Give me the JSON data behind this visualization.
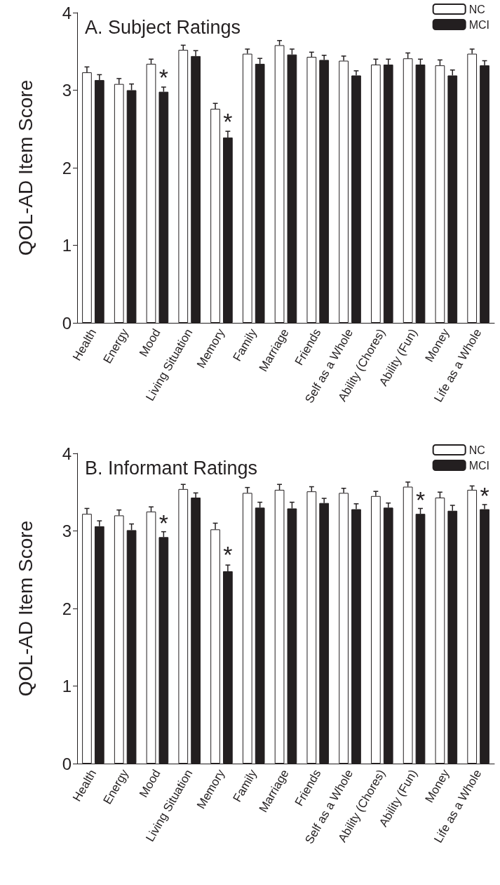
{
  "chart_data": [
    {
      "type": "bar",
      "title": "A. Subject Ratings",
      "ylabel": "QOL-AD Item Score",
      "categories": [
        "Health",
        "Energy",
        "Mood",
        "Living Situation",
        "Memory",
        "Family",
        "Marriage",
        "Friends",
        "Self as a Whole",
        "Ability (Chores)",
        "Ability (Fun)",
        "Money",
        "Life as a Whole"
      ],
      "series": [
        {
          "name": "NC",
          "color": "#ffffff",
          "values": [
            3.23,
            3.08,
            3.34,
            3.52,
            2.76,
            3.47,
            3.58,
            3.43,
            3.38,
            3.33,
            3.41,
            3.32,
            3.47
          ],
          "errors": [
            [
              3.23,
              3.3
            ],
            [
              3.08,
              3.15
            ],
            [
              3.34,
              3.4
            ],
            [
              3.52,
              3.58
            ],
            [
              2.76,
              2.83
            ],
            [
              3.47,
              3.53
            ],
            [
              3.58,
              3.64
            ],
            [
              3.43,
              3.49
            ],
            [
              3.38,
              3.44
            ],
            [
              3.33,
              3.4
            ],
            [
              3.41,
              3.48
            ],
            [
              3.32,
              3.39
            ],
            [
              3.47,
              3.53
            ]
          ]
        },
        {
          "name": "MCI",
          "color": "#231f20",
          "values": [
            3.13,
            3.0,
            2.98,
            3.44,
            2.39,
            3.34,
            3.46,
            3.39,
            3.19,
            3.33,
            3.33,
            3.19,
            3.32
          ],
          "errors": [
            [
              3.13,
              3.2
            ],
            [
              3.0,
              3.08
            ],
            [
              2.98,
              3.04
            ],
            [
              3.44,
              3.51
            ],
            [
              2.39,
              2.47
            ],
            [
              3.34,
              3.41
            ],
            [
              3.46,
              3.53
            ],
            [
              3.39,
              3.45
            ],
            [
              3.19,
              3.25
            ],
            [
              3.33,
              3.4
            ],
            [
              3.33,
              3.4
            ],
            [
              3.19,
              3.26
            ],
            [
              3.32,
              3.38
            ]
          ]
        }
      ],
      "ylim": [
        0,
        4
      ],
      "yticks": [
        0,
        1,
        2,
        3,
        4
      ],
      "grid": false,
      "legend": "top right",
      "annotations": [
        {
          "text": "*",
          "x": "Mood",
          "y": 3.17
        },
        {
          "text": "*",
          "x": "Memory",
          "y": 2.6
        }
      ]
    },
    {
      "type": "bar",
      "title": "B. Informant Ratings",
      "ylabel": "QOL-AD Item Score",
      "categories": [
        "Health",
        "Energy",
        "Mood",
        "Living Situation",
        "Memory",
        "Family",
        "Marriage",
        "Friends",
        "Self as a Whole",
        "Ability (Chores)",
        "Ability (Fun)",
        "Money",
        "Life as a Whole"
      ],
      "series": [
        {
          "name": "NC",
          "color": "#ffffff",
          "values": [
            3.22,
            3.2,
            3.25,
            3.54,
            3.02,
            3.49,
            3.53,
            3.51,
            3.49,
            3.45,
            3.57,
            3.43,
            3.53
          ],
          "errors": [
            [
              3.22,
              3.29
            ],
            [
              3.2,
              3.27
            ],
            [
              3.25,
              3.31
            ],
            [
              3.54,
              3.6
            ],
            [
              3.02,
              3.1
            ],
            [
              3.49,
              3.56
            ],
            [
              3.53,
              3.6
            ],
            [
              3.51,
              3.57
            ],
            [
              3.49,
              3.55
            ],
            [
              3.45,
              3.51
            ],
            [
              3.57,
              3.63
            ],
            [
              3.43,
              3.5
            ],
            [
              3.53,
              3.58
            ]
          ]
        },
        {
          "name": "MCI",
          "color": "#231f20",
          "values": [
            3.06,
            3.01,
            2.92,
            3.43,
            2.48,
            3.3,
            3.29,
            3.36,
            3.28,
            3.3,
            3.22,
            3.26,
            3.28
          ],
          "errors": [
            [
              3.06,
              3.13
            ],
            [
              3.01,
              3.09
            ],
            [
              2.92,
              2.99
            ],
            [
              3.43,
              3.49
            ],
            [
              2.48,
              2.56
            ],
            [
              3.3,
              3.37
            ],
            [
              3.29,
              3.37
            ],
            [
              3.36,
              3.42
            ],
            [
              3.28,
              3.35
            ],
            [
              3.3,
              3.36
            ],
            [
              3.22,
              3.29
            ],
            [
              3.26,
              3.33
            ],
            [
              3.28,
              3.34
            ]
          ]
        }
      ],
      "ylim": [
        0,
        4
      ],
      "yticks": [
        0,
        1,
        2,
        3,
        4
      ],
      "grid": false,
      "legend": "top right",
      "annotations": [
        {
          "text": "*",
          "x": "Mood",
          "y": 3.1
        },
        {
          "text": "*",
          "x": "Memory",
          "y": 2.7
        },
        {
          "text": "*",
          "x": "Ability (Fun)",
          "y": 3.4
        },
        {
          "text": "*",
          "x": "Life as a Whole",
          "y": 3.46
        }
      ]
    }
  ]
}
